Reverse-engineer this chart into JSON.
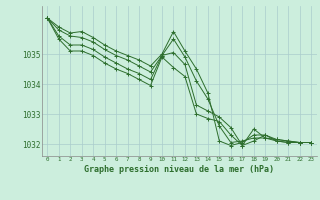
{
  "background_color": "#cceedd",
  "grid_color": "#aacccc",
  "line_color": "#2d6e2d",
  "title": "Graphe pression niveau de la mer (hPa)",
  "hours": [
    0,
    1,
    2,
    3,
    4,
    5,
    6,
    7,
    8,
    9,
    10,
    11,
    12,
    13,
    14,
    15,
    16,
    17,
    18,
    19,
    20,
    21,
    22,
    23
  ],
  "ylim": [
    1031.6,
    1036.6
  ],
  "yticks": [
    1032,
    1033,
    1034,
    1035
  ],
  "series": [
    [
      1036.2,
      1035.9,
      1035.7,
      1035.75,
      1035.55,
      1035.3,
      1035.1,
      1034.95,
      1034.8,
      1034.6,
      1035.0,
      1035.75,
      1035.1,
      1034.5,
      1033.7,
      1032.1,
      1031.95,
      1032.05,
      1032.3,
      1032.3,
      1032.1,
      1032.05,
      1032.05,
      1032.05
    ],
    [
      1036.2,
      1035.8,
      1035.6,
      1035.55,
      1035.4,
      1035.15,
      1034.95,
      1034.8,
      1034.6,
      1034.4,
      1034.95,
      1035.5,
      1034.9,
      1034.1,
      1033.5,
      1032.6,
      1032.05,
      1032.1,
      1032.2,
      1032.2,
      1032.1,
      1032.05,
      1032.05,
      1032.05
    ],
    [
      1036.2,
      1035.6,
      1035.3,
      1035.3,
      1035.15,
      1034.9,
      1034.7,
      1034.5,
      1034.35,
      1034.15,
      1034.95,
      1035.05,
      1034.65,
      1033.3,
      1033.1,
      1032.9,
      1032.55,
      1031.95,
      1032.1,
      1032.3,
      1032.15,
      1032.1,
      1032.05,
      1032.05
    ],
    [
      1036.2,
      1035.5,
      1035.1,
      1035.1,
      1034.95,
      1034.7,
      1034.5,
      1034.35,
      1034.15,
      1033.95,
      1034.9,
      1034.55,
      1034.25,
      1033.0,
      1032.85,
      1032.75,
      1032.3,
      1031.95,
      1032.5,
      1032.2,
      1032.15,
      1032.1,
      1032.05,
      1032.05
    ]
  ]
}
